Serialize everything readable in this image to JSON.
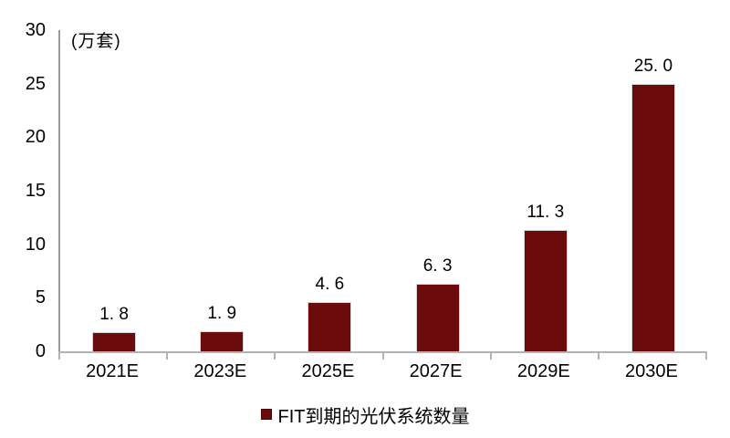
{
  "chart_data": {
    "type": "bar",
    "title": "",
    "unit_label": "(万套)",
    "categories": [
      "2021E",
      "2023E",
      "2025E",
      "2027E",
      "2029E",
      "2030E"
    ],
    "values": [
      1.8,
      1.9,
      4.6,
      6.3,
      11.3,
      25.0
    ],
    "value_labels": [
      "1. 8",
      "1. 9",
      "4. 6",
      "6. 3",
      "11. 3",
      "25. 0"
    ],
    "ylim": [
      0,
      30
    ],
    "yticks": [
      0,
      5,
      10,
      15,
      20,
      25,
      30
    ],
    "grid": false,
    "legend": {
      "position": "bottom-center",
      "entries": [
        {
          "label": "FIT到期的光伏系统数量",
          "color": "#6b0b0b"
        }
      ]
    },
    "colors": {
      "bar": "#6b0b0b",
      "axis_y_line": "#9a9a9a",
      "axis_x_line": "#b3b3b3",
      "text": "#000000"
    }
  }
}
